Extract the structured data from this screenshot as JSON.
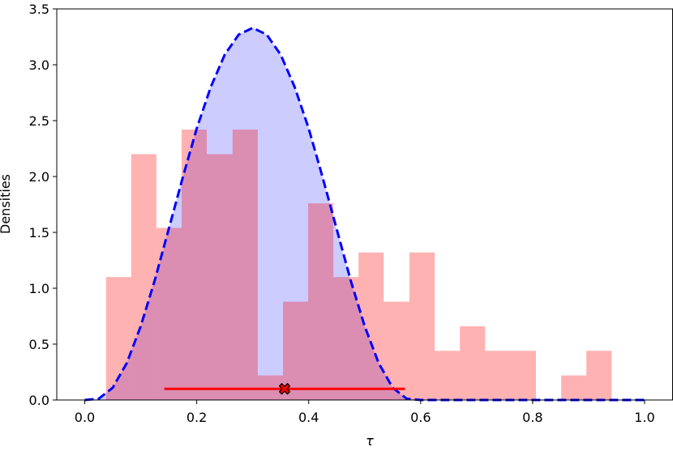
{
  "chart_data": {
    "type": "histogram",
    "xlabel": "τ",
    "ylabel": "Densities",
    "bins": [
      0.038,
      0.083,
      0.128,
      0.173,
      0.218,
      0.264,
      0.309,
      0.354,
      0.399,
      0.444,
      0.489,
      0.534,
      0.58,
      0.625,
      0.67,
      0.715,
      0.76,
      0.806,
      0.851,
      0.896,
      0.941
    ],
    "values": [
      1.1,
      2.2,
      1.54,
      2.42,
      2.2,
      2.42,
      0.22,
      0.88,
      1.76,
      1.1,
      1.32,
      0.88,
      1.32,
      0.44,
      0.66,
      0.44,
      0.44,
      0,
      0.22,
      0.44
    ],
    "color": "#ff0000",
    "density": {
      "color": "#0000ff",
      "fill": "#ccccff",
      "x": [
        0,
        0.025,
        0.05,
        0.075,
        0.1,
        0.125,
        0.15,
        0.175,
        0.2,
        0.225,
        0.25,
        0.275,
        0.3,
        0.325,
        0.35,
        0.375,
        0.4,
        0.425,
        0.45,
        0.475,
        0.5,
        0.525,
        0.55,
        0.575,
        0.6,
        0.65,
        0.7,
        0.75,
        0.8,
        0.85,
        0.9,
        0.95,
        1.0
      ],
      "y": [
        0,
        0.011,
        0.11,
        0.33,
        0.66,
        1.07,
        1.53,
        1.99,
        2.43,
        2.8,
        3.09,
        3.27,
        3.33,
        3.27,
        3.09,
        2.8,
        2.43,
        1.99,
        1.53,
        1.07,
        0.66,
        0.33,
        0.11,
        0.011,
        0,
        0,
        0,
        0,
        0,
        0,
        0,
        0,
        0
      ]
    },
    "interval": {
      "x": 0.357,
      "xerr": 0.215,
      "y": 0.1,
      "color": "#ff0000"
    },
    "xlim": [
      -0.05,
      1.05
    ],
    "ylim": [
      0,
      3.5
    ],
    "xticks": [
      {
        "value": 0,
        "label": "0.0"
      },
      {
        "value": 0.2,
        "label": "0.2"
      },
      {
        "value": 0.4,
        "label": "0.4"
      },
      {
        "value": 0.6,
        "label": "0.6"
      },
      {
        "value": 0.8,
        "label": "0.8"
      },
      {
        "value": 1,
        "label": "1.0"
      }
    ],
    "yticks": [
      {
        "value": 0,
        "label": "0.0"
      },
      {
        "value": 0.5,
        "label": "0.5"
      },
      {
        "value": 1,
        "label": "1.0"
      },
      {
        "value": 1.5,
        "label": "1.5"
      },
      {
        "value": 2,
        "label": "2.0"
      },
      {
        "value": 2.5,
        "label": "2.5"
      },
      {
        "value": 3,
        "label": "3.0"
      },
      {
        "value": 3.5,
        "label": "3.5"
      }
    ]
  }
}
